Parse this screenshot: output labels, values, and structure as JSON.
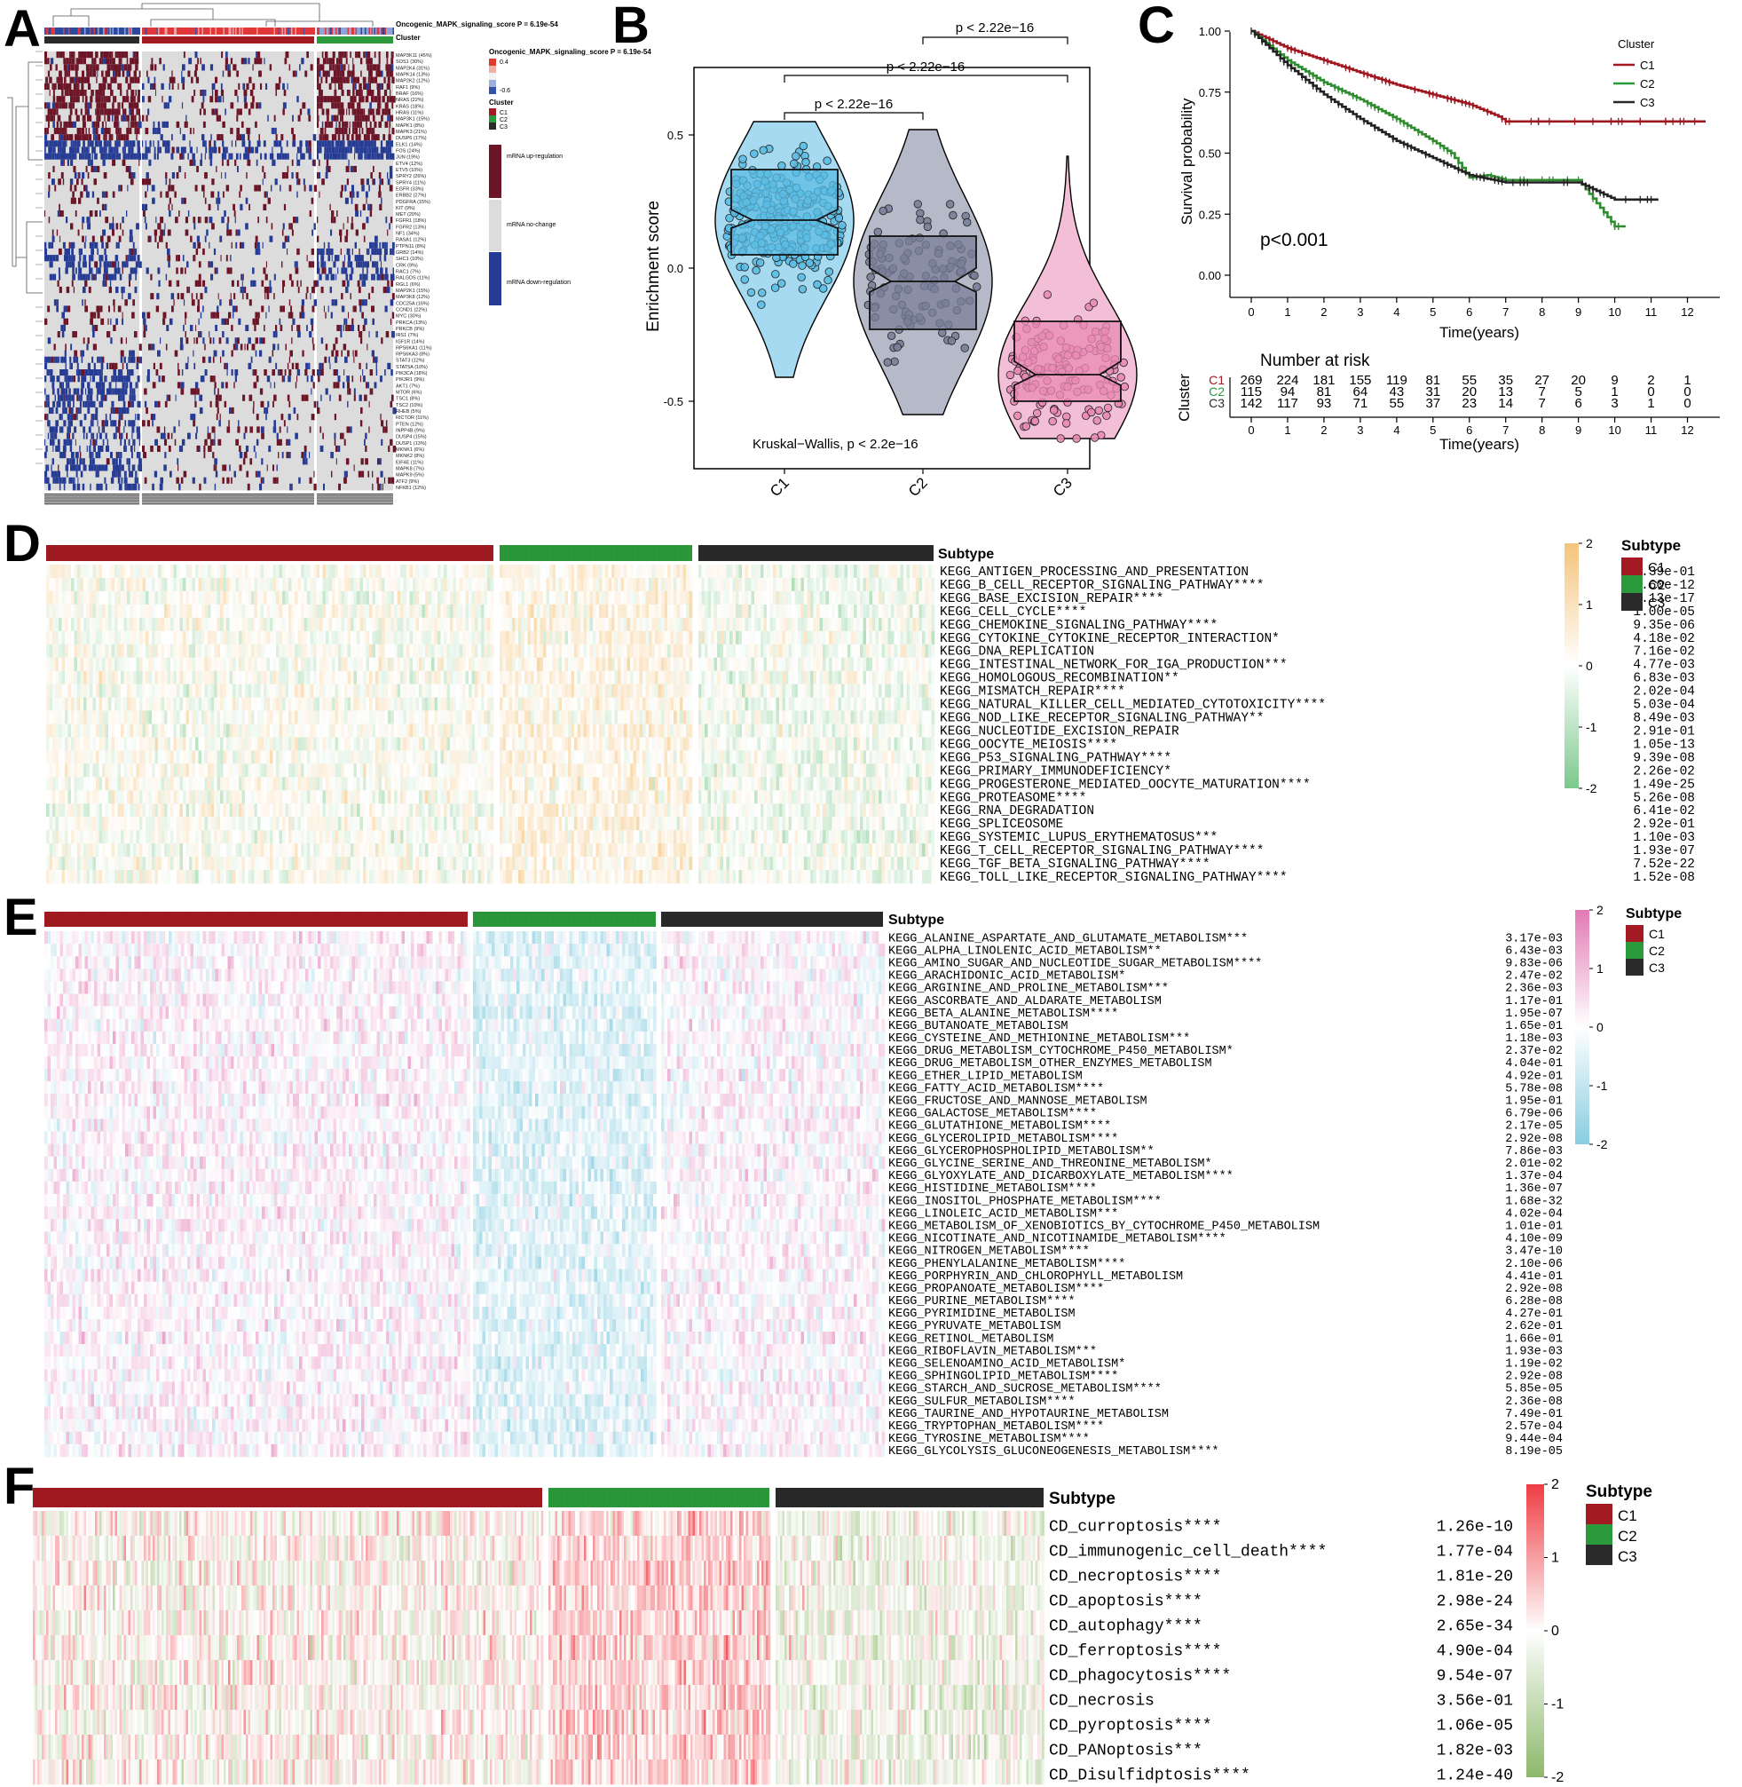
{
  "panels": {
    "A": {
      "label": "A",
      "score_title": "Oncogenic_MAPK_signaling_score P = 6.19e-54",
      "cluster_title": "Cluster",
      "legend_score_title": "Oncogenic_MAPK_signaling_score P = 6.19e-54",
      "legend_score_ticks": [
        "0.4",
        "-0.6"
      ],
      "legend_cluster_title": "Cluster",
      "legend_clusters": [
        "C1",
        "C2",
        "C3"
      ],
      "legend_mrna": [
        "mRNA up-regulation",
        "mRNA no-change",
        "mRNA down-regulation"
      ],
      "gene_labels": [
        "MAP3K11 (45%)",
        "SOS1 (30%)",
        "MAP2K4 (31%)",
        "MAPK14 (13%)",
        "MAP2K2 (12%)",
        "RAF1 (9%)",
        "BRAF (16%)",
        "NRAS (22%)",
        "KRAS (18%)",
        "HRAS (11%)",
        "MAP3K1 (15%)",
        "MAPK1 (8%)",
        "MAPK3 (21%)",
        "DUSP6 (17%)",
        "ELK1 (14%)",
        "FOS (24%)",
        "JUN (19%)",
        "ETV4 (12%)",
        "ETV5 (10%)",
        "SPRY2 (26%)",
        "SPRY4 (11%)",
        "EGFR (33%)",
        "ERBB2 (27%)",
        "PDGFRA (15%)",
        "KIT (9%)",
        "MET (20%)",
        "FGFR1 (18%)",
        "FGFR2 (13%)",
        "NF1 (34%)",
        "RASA1 (12%)",
        "PTPN11 (8%)",
        "GRB2 (14%)",
        "SHC1 (10%)",
        "CRK (9%)",
        "RAC1 (7%)",
        "RALGDS (11%)",
        "RGL1 (6%)",
        "MAP2K1 (15%)",
        "MAP3K8 (12%)",
        "CDC25A (16%)",
        "CCND1 (22%)",
        "MYC (30%)",
        "PRKCA (13%)",
        "PRKCB (9%)",
        "IRS1 (7%)",
        "IGF1R (14%)",
        "RPS6KA1 (11%)",
        "RPS6KA3 (8%)",
        "STAT3 (12%)",
        "STAT5A (10%)",
        "PIK3CA (18%)",
        "PIK3R1 (9%)",
        "AKT1 (7%)",
        "MTOR (6%)",
        "TSC1 (8%)",
        "TSC2 (10%)",
        "RHEB (5%)",
        "RICTOR (11%)",
        "PTEN (12%)",
        "INPP4B (9%)",
        "DUSP4 (15%)",
        "DUSP1 (13%)",
        "MKNK1 (6%)",
        "MKNK2 (8%)",
        "EIF4E (11%)",
        "MAPK8 (7%)",
        "MAPK9 (5%)",
        "ATF2 (9%)",
        "NFKB1 (12%)"
      ]
    },
    "B": {
      "label": "B",
      "ylabel": "Enrichment score",
      "kw_text": "Kruskal−Wallis, p < 2.2e−16",
      "comparisons": [
        "p < 2.22e−16",
        "p < 2.22e−16",
        "p < 2.22e−16"
      ],
      "chart_data": {
        "type": "box",
        "categories": [
          "C1",
          "C2",
          "C3"
        ],
        "ylabel": "Enrichment score",
        "yticks": [
          "0.5",
          "0.0",
          "-0.5"
        ],
        "ylim": [
          -0.7,
          0.7
        ],
        "series": [
          {
            "name": "C1",
            "min": -0.41,
            "q1": 0.05,
            "median": 0.18,
            "q3": 0.37,
            "max": 0.55,
            "notch_lo": 0.15,
            "notch_hi": 0.22,
            "n": 269,
            "color": "#5bbce4"
          },
          {
            "name": "C2",
            "min": -0.55,
            "q1": -0.23,
            "median": -0.05,
            "q3": 0.12,
            "max": 0.52,
            "notch_lo": -0.09,
            "notch_hi": 0.0,
            "n": 115,
            "color": "#7a8099"
          },
          {
            "name": "C3",
            "min": -0.64,
            "q1": -0.5,
            "median": -0.4,
            "q3": -0.2,
            "max": 0.42,
            "notch_lo": -0.44,
            "notch_hi": -0.35,
            "n": 142,
            "color": "#e98bb4"
          }
        ]
      }
    },
    "C": {
      "label": "C",
      "ylabel": "Survival probability",
      "xlabel": "Time(years)",
      "pvalue": "p<0.001",
      "legend_title": "Cluster",
      "risk_title": "Number at risk",
      "risk_ylabel": "Cluster",
      "risk_xlabel": "Time(years)",
      "chart_data": {
        "type": "line",
        "xlabel": "Time(years)",
        "ylabel": "Survival probability",
        "x_ticks": [
          "0",
          "1",
          "2",
          "3",
          "4",
          "5",
          "6",
          "7",
          "8",
          "9",
          "10",
          "11",
          "12"
        ],
        "y_ticks": [
          "0.00",
          "0.25",
          "0.50",
          "0.75",
          "1.00"
        ],
        "xlim": [
          0,
          12
        ],
        "ylim": [
          0,
          1
        ],
        "series": [
          {
            "name": "C1",
            "color": "#a0161f",
            "x": [
              0,
              1,
              2,
              3,
              4,
              5,
              6,
              6.8,
              7,
              8,
              9,
              10,
              11,
              12.5
            ],
            "y": [
              1,
              0.93,
              0.88,
              0.83,
              0.78,
              0.74,
              0.7,
              0.65,
              0.63,
              0.63,
              0.63,
              0.63,
              0.63,
              0.63
            ]
          },
          {
            "name": "C2",
            "color": "#2e8b2e",
            "x": [
              0,
              1,
              2,
              3,
              4,
              5,
              5.5,
              6,
              6.5,
              7,
              8,
              9,
              10,
              10.3
            ],
            "y": [
              1,
              0.88,
              0.79,
              0.72,
              0.64,
              0.55,
              0.5,
              0.4,
              0.41,
              0.39,
              0.39,
              0.39,
              0.2,
              0.2
            ]
          },
          {
            "name": "C3",
            "color": "#222222",
            "x": [
              0,
              1,
              2,
              3,
              4,
              5,
              6,
              7,
              8,
              9,
              10,
              11,
              11.2
            ],
            "y": [
              1,
              0.86,
              0.74,
              0.64,
              0.55,
              0.48,
              0.41,
              0.38,
              0.38,
              0.38,
              0.31,
              0.31,
              0.31
            ]
          }
        ],
        "risk_table": {
          "times": [
            "0",
            "1",
            "2",
            "3",
            "4",
            "5",
            "6",
            "7",
            "8",
            "9",
            "10",
            "11",
            "12"
          ],
          "rows": [
            {
              "name": "C1",
              "values": [
                "269",
                "224",
                "181",
                "155",
                "119",
                "81",
                "55",
                "35",
                "27",
                "20",
                "9",
                "2",
                "1"
              ]
            },
            {
              "name": "C2",
              "values": [
                "115",
                "94",
                "81",
                "64",
                "43",
                "31",
                "20",
                "13",
                "7",
                "5",
                "1",
                "0",
                "0"
              ]
            },
            {
              "name": "C3",
              "values": [
                "142",
                "117",
                "93",
                "71",
                "55",
                "37",
                "23",
                "14",
                "7",
                "6",
                "3",
                "1",
                "0"
              ]
            }
          ]
        }
      }
    },
    "D": {
      "label": "D",
      "subtype_label": "Subtype",
      "legend_title": "Subtype",
      "legend_items": [
        "C1",
        "C2",
        "C3"
      ],
      "scale_ticks": [
        "2",
        "1",
        "0",
        "-1",
        "-2"
      ],
      "rows": [
        {
          "name": "KEGG_ANTIGEN_PROCESSING_AND_PRESENTATION",
          "p": "6.39e-01"
        },
        {
          "name": "KEGG_B_CELL_RECEPTOR_SIGNALING_PATHWAY****",
          "p": "4.60e-12"
        },
        {
          "name": "KEGG_BASE_EXCISION_REPAIR****",
          "p": "3.13e-17"
        },
        {
          "name": "KEGG_CELL_CYCLE****",
          "p": "1.00e-05"
        },
        {
          "name": "KEGG_CHEMOKINE_SIGNALING_PATHWAY****",
          "p": "9.35e-06"
        },
        {
          "name": "KEGG_CYTOKINE_CYTOKINE_RECEPTOR_INTERACTION*",
          "p": "4.18e-02"
        },
        {
          "name": "KEGG_DNA_REPLICATION",
          "p": "7.16e-02"
        },
        {
          "name": "KEGG_INTESTINAL_NETWORK_FOR_IGA_PRODUCTION***",
          "p": "4.77e-03"
        },
        {
          "name": "KEGG_HOMOLOGOUS_RECOMBINATION**",
          "p": "6.83e-03"
        },
        {
          "name": "KEGG_MISMATCH_REPAIR****",
          "p": "2.02e-04"
        },
        {
          "name": "KEGG_NATURAL_KILLER_CELL_MEDIATED_CYTOTOXICITY****",
          "p": "5.03e-04"
        },
        {
          "name": "KEGG_NOD_LIKE_RECEPTOR_SIGNALING_PATHWAY**",
          "p": "8.49e-03"
        },
        {
          "name": "KEGG_NUCLEOTIDE_EXCISION_REPAIR",
          "p": "2.91e-01"
        },
        {
          "name": "KEGG_OOCYTE_MEIOSIS****",
          "p": "1.05e-13"
        },
        {
          "name": "KEGG_P53_SIGNALING_PATHWAY****",
          "p": "9.39e-08"
        },
        {
          "name": "KEGG_PRIMARY_IMMUNODEFICIENCY*",
          "p": "2.26e-02"
        },
        {
          "name": "KEGG_PROGESTERONE_MEDIATED_OOCYTE_MATURATION****",
          "p": "1.49e-25"
        },
        {
          "name": "KEGG_PROTEASOME****",
          "p": "5.26e-08"
        },
        {
          "name": "KEGG_RNA_DEGRADATION",
          "p": "6.41e-02"
        },
        {
          "name": "KEGG_SPLICEOSOME",
          "p": "2.92e-01"
        },
        {
          "name": "KEGG_SYSTEMIC_LUPUS_ERYTHEMATOSUS***",
          "p": "1.10e-03"
        },
        {
          "name": "KEGG_T_CELL_RECEPTOR_SIGNALING_PATHWAY****",
          "p": "1.93e-07"
        },
        {
          "name": "KEGG_TGF_BETA_SIGNALING_PATHWAY****",
          "p": "7.52e-22"
        },
        {
          "name": "KEGG_TOLL_LIKE_RECEPTOR_SIGNALING_PATHWAY****",
          "p": "1.52e-08"
        }
      ]
    },
    "E": {
      "label": "E",
      "subtype_label": "Subtype",
      "legend_title": "Subtype",
      "legend_items": [
        "C1",
        "C2",
        "C3"
      ],
      "scale_ticks": [
        "2",
        "1",
        "0",
        "-1",
        "-2"
      ],
      "rows": [
        {
          "name": "KEGG_ALANINE_ASPARTATE_AND_GLUTAMATE_METABOLISM***",
          "p": "3.17e-03"
        },
        {
          "name": "KEGG_ALPHA_LINOLENIC_ACID_METABOLISM**",
          "p": "6.43e-03"
        },
        {
          "name": "KEGG_AMINO_SUGAR_AND_NUCLEOTIDE_SUGAR_METABOLISM****",
          "p": "9.83e-06"
        },
        {
          "name": "KEGG_ARACHIDONIC_ACID_METABOLISM*",
          "p": "2.47e-02"
        },
        {
          "name": "KEGG_ARGININE_AND_PROLINE_METABOLISM***",
          "p": "2.36e-03"
        },
        {
          "name": "KEGG_ASCORBATE_AND_ALDARATE_METABOLISM",
          "p": "1.17e-01"
        },
        {
          "name": "KEGG_BETA_ALANINE_METABOLISM****",
          "p": "1.95e-07"
        },
        {
          "name": "KEGG_BUTANOATE_METABOLISM",
          "p": "1.65e-01"
        },
        {
          "name": "KEGG_CYSTEINE_AND_METHIONINE_METABOLISM***",
          "p": "1.18e-03"
        },
        {
          "name": "KEGG_DRUG_METABOLISM_CYTOCHROME_P450_METABOLISM*",
          "p": "2.37e-02"
        },
        {
          "name": "KEGG_DRUG_METABOLISM_OTHER_ENZYMES_METABOLISM",
          "p": "4.04e-01"
        },
        {
          "name": "KEGG_ETHER_LIPID_METABOLISM",
          "p": "4.92e-01"
        },
        {
          "name": "KEGG_FATTY_ACID_METABOLISM****",
          "p": "5.78e-08"
        },
        {
          "name": "KEGG_FRUCTOSE_AND_MANNOSE_METABOLISM",
          "p": "1.95e-01"
        },
        {
          "name": "KEGG_GALACTOSE_METABOLISM****",
          "p": "6.79e-06"
        },
        {
          "name": "KEGG_GLUTATHIONE_METABOLISM****",
          "p": "2.17e-05"
        },
        {
          "name": "KEGG_GLYCEROLIPID_METABOLISM****",
          "p": "2.92e-08"
        },
        {
          "name": "KEGG_GLYCEROPHOSPHOLIPID_METABOLISM**",
          "p": "7.86e-03"
        },
        {
          "name": "KEGG_GLYCINE_SERINE_AND_THREONINE_METABOLISM*",
          "p": "2.01e-02"
        },
        {
          "name": "KEGG_GLYOXYLATE_AND_DICARBOXYLATE_METABOLISM****",
          "p": "1.37e-04"
        },
        {
          "name": "KEGG_HISTIDINE_METABOLISM****",
          "p": "1.36e-07"
        },
        {
          "name": "KEGG_INOSITOL_PHOSPHATE_METABOLISM****",
          "p": "1.68e-32"
        },
        {
          "name": "KEGG_LINOLEIC_ACID_METABOLISM***",
          "p": "4.02e-04"
        },
        {
          "name": "KEGG_METABOLISM_OF_XENOBIOTICS_BY_CYTOCHROME_P450_METABOLISM",
          "p": "1.01e-01"
        },
        {
          "name": "KEGG_NICOTINATE_AND_NICOTINAMIDE_METABOLISM****",
          "p": "4.10e-09"
        },
        {
          "name": "KEGG_NITROGEN_METABOLISM****",
          "p": "3.47e-10"
        },
        {
          "name": "KEGG_PHENYLALANINE_METABOLISM****",
          "p": "2.10e-06"
        },
        {
          "name": "KEGG_PORPHYRIN_AND_CHLOROPHYLL_METABOLISM",
          "p": "4.41e-01"
        },
        {
          "name": "KEGG_PROPANOATE_METABOLISM****",
          "p": "2.92e-08"
        },
        {
          "name": "KEGG_PURINE_METABOLISM****",
          "p": "6.28e-08"
        },
        {
          "name": "KEGG_PYRIMIDINE_METABOLISM",
          "p": "4.27e-01"
        },
        {
          "name": "KEGG_PYRUVATE_METABOLISM",
          "p": "2.62e-01"
        },
        {
          "name": "KEGG_RETINOL_METABOLISM",
          "p": "1.66e-01"
        },
        {
          "name": "KEGG_RIBOFLAVIN_METABOLISM***",
          "p": "1.93e-03"
        },
        {
          "name": "KEGG_SELENOAMINO_ACID_METABOLISM*",
          "p": "1.19e-02"
        },
        {
          "name": "KEGG_SPHINGOLIPID_METABOLISM****",
          "p": "2.92e-08"
        },
        {
          "name": "KEGG_STARCH_AND_SUCROSE_METABOLISM****",
          "p": "5.85e-05"
        },
        {
          "name": "KEGG_SULFUR_METABOLISM****",
          "p": "2.36e-08"
        },
        {
          "name": "KEGG_TAURINE_AND_HYPOTAURINE_METABOLISM",
          "p": "7.49e-01"
        },
        {
          "name": "KEGG_TRYPTOPHAN_METABOLISM****",
          "p": "2.57e-04"
        },
        {
          "name": "KEGG_TYROSINE_METABOLISM****",
          "p": "9.44e-04"
        },
        {
          "name": "KEGG_GLYCOLYSIS_GLUCONEOGENESIS_METABOLISM****",
          "p": "8.19e-05"
        }
      ]
    },
    "F": {
      "label": "F",
      "subtype_label": "Subtype",
      "legend_title": "Subtype",
      "legend_items": [
        "C1",
        "C2",
        "C3"
      ],
      "scale_ticks": [
        "2",
        "1",
        "0",
        "-1",
        "-2"
      ],
      "rows": [
        {
          "name": "CD_curroptosis****",
          "p": "1.26e-10"
        },
        {
          "name": "CD_immunogenic_cell_death****",
          "p": "1.77e-04"
        },
        {
          "name": "CD_necroptosis****",
          "p": "1.81e-20"
        },
        {
          "name": "CD_apoptosis****",
          "p": "2.98e-24"
        },
        {
          "name": "CD_autophagy****",
          "p": "2.65e-34"
        },
        {
          "name": "CD_ferroptosis****",
          "p": "4.90e-04"
        },
        {
          "name": "CD_phagocytosis****",
          "p": "9.54e-07"
        },
        {
          "name": "CD_necrosis",
          "p": "3.56e-01"
        },
        {
          "name": "CD_pyroptosis****",
          "p": "1.06e-05"
        },
        {
          "name": "CD_PANoptosis***",
          "p": "1.82e-03"
        },
        {
          "name": "CD_Disulfidptosis****",
          "p": "1.24e-40"
        }
      ]
    }
  },
  "colors": {
    "C1": "#a31a22",
    "C2": "#2b9a3c",
    "C3": "#2a2a2a",
    "up": "#6b1526",
    "down": "#263c94",
    "nochange": "#dcdcdc",
    "D_high": "#f4c47c",
    "D_low": "#7cc88c",
    "E_high": "#e27ab4",
    "E_low": "#88cde0",
    "F_high": "#ee3d44",
    "F_low": "#8cb86a"
  }
}
